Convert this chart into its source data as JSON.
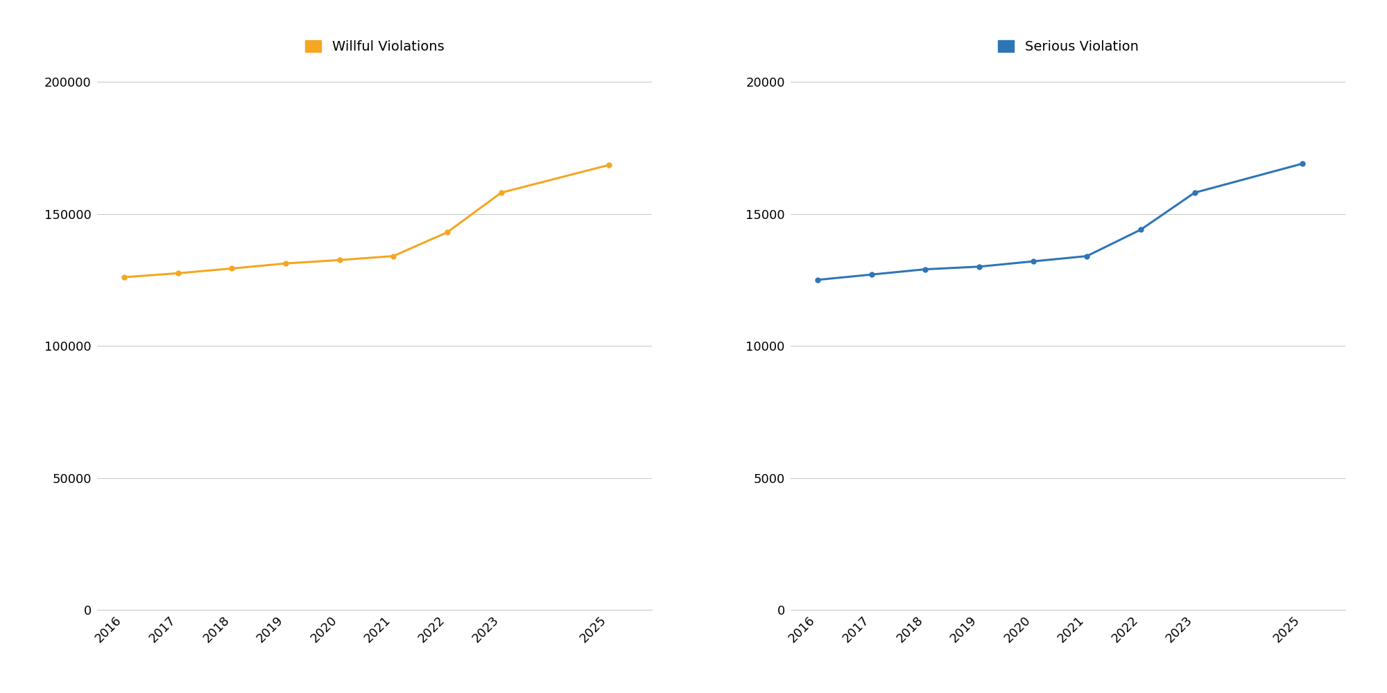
{
  "years": [
    2016,
    2017,
    2018,
    2019,
    2020,
    2021,
    2022,
    2023,
    2025
  ],
  "willful_values": [
    126000,
    127500,
    129300,
    131200,
    132500,
    134000,
    143000,
    158000,
    168500
  ],
  "serious_values": [
    12500,
    12700,
    12900,
    13000,
    13200,
    13400,
    14400,
    15800,
    16900
  ],
  "willful_color": "#F5A623",
  "serious_color": "#2E75B6",
  "willful_label": "Willful Violations",
  "serious_label": "Serious Violation",
  "willful_ylim": [
    0,
    210000
  ],
  "serious_ylim": [
    0,
    21000
  ],
  "willful_yticks": [
    0,
    50000,
    100000,
    150000,
    200000
  ],
  "serious_yticks": [
    0,
    5000,
    10000,
    15000,
    20000
  ],
  "background_color": "#ffffff",
  "grid_color": "#cccccc",
  "title_fontsize": 14,
  "tick_fontsize": 13,
  "line_width": 2.2,
  "marker_size": 5
}
